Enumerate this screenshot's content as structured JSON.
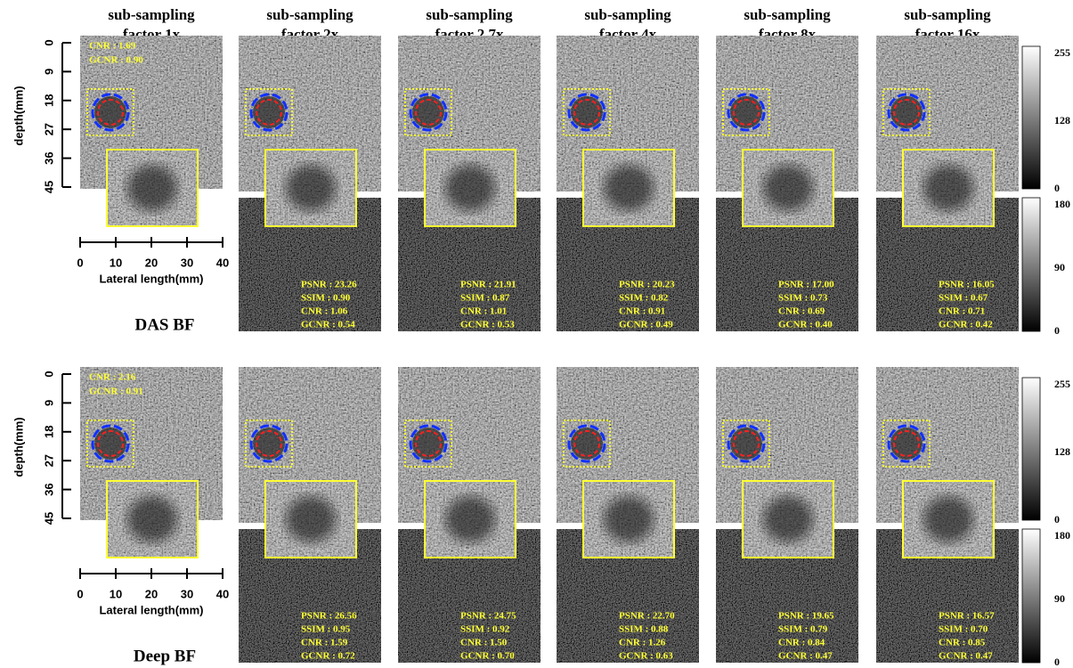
{
  "columns": [
    {
      "line1": "sub-sampling",
      "line2": "factor 1x"
    },
    {
      "line1": "sub-sampling",
      "line2": "factor 2x"
    },
    {
      "line1": "sub-sampling",
      "line2": "factor 2.7x"
    },
    {
      "line1": "sub-sampling",
      "line2": "factor 4x"
    },
    {
      "line1": "sub-sampling",
      "line2": "factor 8x"
    },
    {
      "line1": "sub-sampling",
      "line2": "factor 16x"
    }
  ],
  "rows": [
    {
      "label": "DAS BF",
      "depth_label": "depth(mm)",
      "depth_ticks": [
        "0",
        "9",
        "18",
        "27",
        "36",
        "45"
      ],
      "lateral_label": "Lateral length(mm)",
      "lateral_ticks": [
        "0",
        "10",
        "20",
        "30",
        "40"
      ],
      "reference": [
        "CNR : 1.69",
        "GCNR : 0.90"
      ],
      "panels": [
        [
          "PSNR : 23.26",
          "SSIM : 0.90",
          "CNR : 1.06",
          "GCNR : 0.54"
        ],
        [
          "PSNR : 21.91",
          "SSIM : 0.87",
          "CNR : 1.01",
          "GCNR : 0.53"
        ],
        [
          "PSNR : 20.23",
          "SSIM : 0.82",
          "CNR : 0.91",
          "GCNR : 0.49"
        ],
        [
          "PSNR : 17.00",
          "SSIM : 0.73",
          "CNR : 0.69",
          "GCNR : 0.40"
        ],
        [
          "PSNR : 16.05",
          "SSIM : 0.67",
          "CNR : 0.71",
          "GCNR : 0.42"
        ]
      ],
      "colorbar_image": [
        "255",
        "128",
        "0"
      ],
      "colorbar_diff": [
        "180",
        "90",
        "0"
      ]
    },
    {
      "label": "Deep BF",
      "depth_label": "depth(mm)",
      "depth_ticks": [
        "0",
        "9",
        "18",
        "27",
        "36",
        "45"
      ],
      "lateral_label": "Lateral length(mm)",
      "lateral_ticks": [
        "0",
        "10",
        "20",
        "30",
        "40"
      ],
      "reference": [
        "CNR : 2.16",
        "GCNR : 0.91"
      ],
      "panels": [
        [
          "PSNR : 26.56",
          "SSIM : 0.95",
          "CNR : 1.59",
          "GCNR : 0.72"
        ],
        [
          "PSNR : 24.75",
          "SSIM : 0.92",
          "CNR : 1.50",
          "GCNR : 0.70"
        ],
        [
          "PSNR : 22.70",
          "SSIM : 0.88",
          "CNR : 1.26",
          "GCNR : 0.63"
        ],
        [
          "PSNR : 19.65",
          "SSIM : 0.79",
          "CNR : 0.84",
          "GCNR : 0.47"
        ],
        [
          "PSNR : 16.57",
          "SSIM : 0.70",
          "CNR : 0.85",
          "GCNR : 0.47"
        ]
      ],
      "colorbar_image": [
        "255",
        "128",
        "0"
      ],
      "colorbar_diff": [
        "180",
        "90",
        "0"
      ]
    }
  ]
}
